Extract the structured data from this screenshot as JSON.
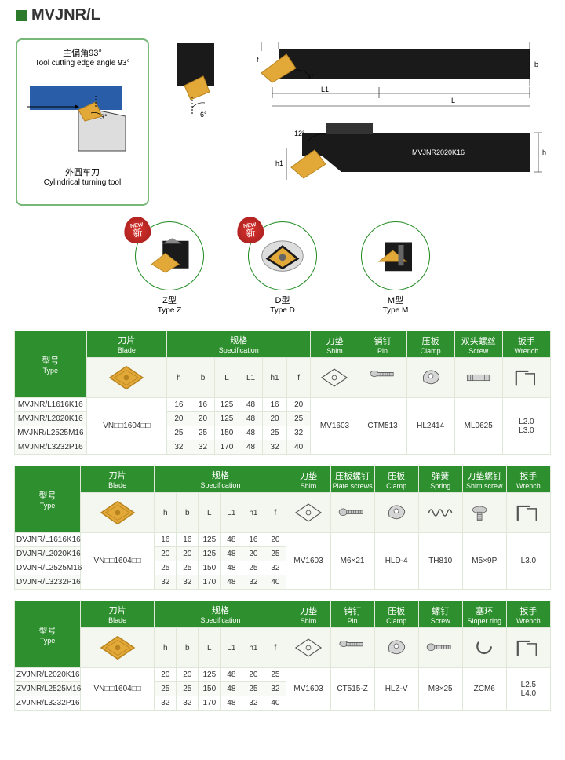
{
  "title": "MVJNR/L",
  "leftBox": {
    "angle_cn": "主偏角93°",
    "angle_en": "Tool cutting edge angle 93°",
    "angle_val": "3°",
    "tool_cn": "外圆车刀",
    "tool_en": "Cylindrical turning tool"
  },
  "diagramLabels": {
    "a6": "6°",
    "a3": "3°",
    "a12": "12°",
    "L": "L",
    "L1": "L1",
    "b": "b",
    "f": "f",
    "h": "h",
    "h1": "h1",
    "model": "MVJNR2020K16"
  },
  "types": [
    {
      "cn": "Z型",
      "en": "Type Z",
      "new": true
    },
    {
      "cn": "D型",
      "en": "Type D",
      "new": true
    },
    {
      "cn": "M型",
      "en": "Type M",
      "new": false
    }
  ],
  "headers": {
    "type": {
      "cn": "型号",
      "en": "Type"
    },
    "blade": {
      "cn": "刀片",
      "en": "Blade"
    },
    "spec": {
      "cn": "规格",
      "en": "Specification"
    },
    "shim": {
      "cn": "刀垫",
      "en": "Shim"
    },
    "pin": {
      "cn": "销钉",
      "en": "Pin"
    },
    "clamp": {
      "cn": "压板",
      "en": "Clamp"
    },
    "screw2h": {
      "cn": "双头螺丝",
      "en": "Screw"
    },
    "wrench": {
      "cn": "扳手",
      "en": "Wrench"
    },
    "platescrew": {
      "cn": "压板螺钉",
      "en": "Plate screws"
    },
    "spring": {
      "cn": "弹簧",
      "en": "Spring"
    },
    "shimscrew": {
      "cn": "刀垫螺钉",
      "en": "Shim screw"
    },
    "screw": {
      "cn": "螺钉",
      "en": "Screw"
    },
    "sloper": {
      "cn": "塞环",
      "en": "Sloper ring"
    }
  },
  "specCols": [
    "h",
    "b",
    "L",
    "L1",
    "h1",
    "f"
  ],
  "blade_code": "VN□□1604□□",
  "shim_code": "MV1603",
  "table1": {
    "acc_order": [
      "shim",
      "pin",
      "clamp",
      "screw2h",
      "wrench"
    ],
    "rows": [
      {
        "type": "MVJNR/L1616K16",
        "spec": [
          16,
          16,
          125,
          48,
          16,
          20
        ]
      },
      {
        "type": "MVJNR/L2020K16",
        "spec": [
          20,
          20,
          125,
          48,
          20,
          25
        ]
      },
      {
        "type": "MVJNR/L2525M16",
        "spec": [
          25,
          25,
          150,
          48,
          25,
          32
        ]
      },
      {
        "type": "MVJNR/L3232P16",
        "spec": [
          32,
          32,
          170,
          48,
          32,
          40
        ]
      }
    ],
    "acc": {
      "pin": "CTM513",
      "clamp": "HL2414",
      "screw2h": "ML0625",
      "wrench": "L2.0\nL3.0"
    }
  },
  "table2": {
    "acc_order": [
      "shim",
      "platescrew",
      "clamp",
      "spring",
      "shimscrew",
      "wrench"
    ],
    "rows": [
      {
        "type": "DVJNR/L1616K16",
        "spec": [
          16,
          16,
          125,
          48,
          16,
          20
        ]
      },
      {
        "type": "DVJNR/L2020K16",
        "spec": [
          20,
          20,
          125,
          48,
          20,
          25
        ]
      },
      {
        "type": "DVJNR/L2525M16",
        "spec": [
          25,
          25,
          150,
          48,
          25,
          32
        ]
      },
      {
        "type": "DVJNR/L3232P16",
        "spec": [
          32,
          32,
          170,
          48,
          32,
          40
        ]
      }
    ],
    "acc": {
      "platescrew": "M6×21",
      "clamp": "HLD-4",
      "spring": "TH810",
      "shimscrew": "M5×9P",
      "wrench": "L3.0"
    }
  },
  "table3": {
    "acc_order": [
      "shim",
      "pin",
      "clamp",
      "screw",
      "sloper",
      "wrench"
    ],
    "rows": [
      {
        "type": "ZVJNR/L2020K16",
        "spec": [
          20,
          20,
          125,
          48,
          20,
          25
        ]
      },
      {
        "type": "ZVJNR/L2525M16",
        "spec": [
          25,
          25,
          150,
          48,
          25,
          32
        ]
      },
      {
        "type": "ZVJNR/L3232P16",
        "spec": [
          32,
          32,
          170,
          48,
          32,
          40
        ]
      }
    ],
    "acc": {
      "pin": "CT515-Z",
      "clamp": "HLZ-V",
      "screw": "M8×25",
      "sloper": "ZCM6",
      "wrench": "L2.5\nL4.0"
    }
  },
  "colors": {
    "green": "#2d8f2d",
    "lightgreenBorder": "#dfe7d8",
    "rowEven": "#f8faf5",
    "gold": "#e2a838",
    "goldDark": "#b8831f",
    "black": "#1a1a1a",
    "blue": "#2a5da8"
  }
}
